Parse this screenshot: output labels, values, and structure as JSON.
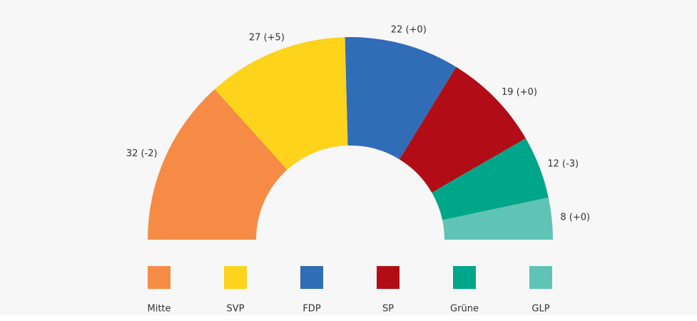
{
  "chart_data": {
    "type": "semicircle",
    "categories": [
      "Mitte",
      "SVP",
      "FDP",
      "SP",
      "Grüne",
      "GLP"
    ],
    "values": [
      32,
      27,
      22,
      19,
      12,
      8
    ],
    "value_labels": [
      "32 (-2)",
      "27 (+5)",
      "22 (+0)",
      "19 (+0)",
      "12 (-3)",
      "8 (+0)"
    ],
    "colors": [
      "#f68b45",
      "#fdd31c",
      "#306db6",
      "#b20d16",
      "#00a68a",
      "#5fc3b6"
    ]
  }
}
